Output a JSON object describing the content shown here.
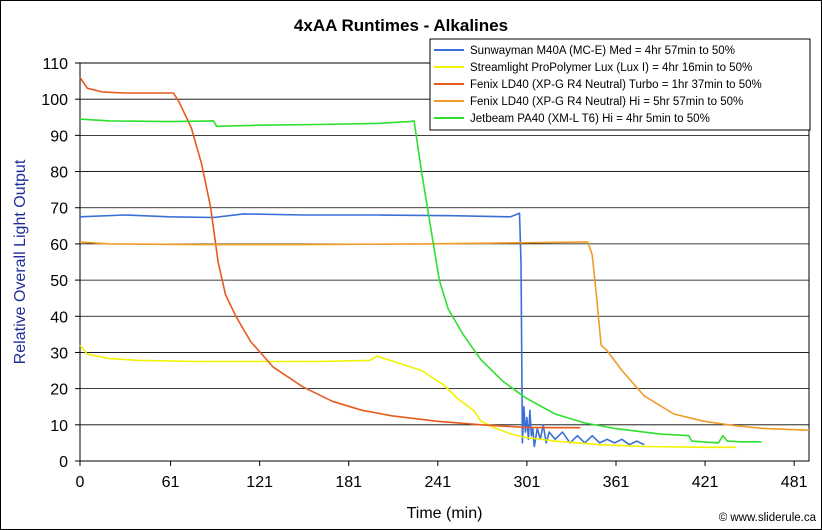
{
  "chart_data": {
    "type": "line",
    "title": "4xAA Runtimes - Alkalines",
    "xlabel": "Time (min)",
    "ylabel": "Relative Overall Light Output",
    "xlim": [
      0,
      491
    ],
    "ylim": [
      0,
      110
    ],
    "xticks": [
      0,
      61,
      121,
      181,
      241,
      301,
      361,
      421,
      481
    ],
    "yticks": [
      0,
      10,
      20,
      30,
      40,
      50,
      60,
      70,
      80,
      90,
      100,
      110
    ],
    "grid": "horizontal",
    "legend_position": "top-right",
    "credit": "© www.sliderule.ca",
    "series": [
      {
        "name": "Sunwayman M40A (MC-E) Med = 4hr 57min to 50%",
        "color": "#3b6fd8",
        "points": [
          [
            0,
            67.5
          ],
          [
            30,
            68
          ],
          [
            60,
            67.5
          ],
          [
            90,
            67.3
          ],
          [
            110,
            68.3
          ],
          [
            150,
            68
          ],
          [
            200,
            68
          ],
          [
            250,
            67.8
          ],
          [
            290,
            67.5
          ],
          [
            296,
            68.5
          ],
          [
            297,
            55
          ],
          [
            298,
            5
          ],
          [
            299,
            15
          ],
          [
            300,
            8
          ],
          [
            301,
            12
          ],
          [
            302,
            6
          ],
          [
            303,
            14
          ],
          [
            304,
            7
          ],
          [
            305,
            9
          ],
          [
            306,
            4
          ],
          [
            308,
            9
          ],
          [
            310,
            6
          ],
          [
            312,
            10
          ],
          [
            314,
            5
          ],
          [
            316,
            8
          ],
          [
            320,
            6
          ],
          [
            325,
            8
          ],
          [
            330,
            5
          ],
          [
            335,
            7
          ],
          [
            340,
            5
          ],
          [
            345,
            7
          ],
          [
            350,
            5
          ],
          [
            355,
            6
          ],
          [
            360,
            5
          ],
          [
            365,
            6
          ],
          [
            370,
            4.5
          ],
          [
            375,
            5.5
          ],
          [
            380,
            4.5
          ]
        ]
      },
      {
        "name": "Streamlight ProPolymer Lux (Lux I) = 4hr 16min to 50%",
        "color": "#f2f200",
        "points": [
          [
            0,
            32
          ],
          [
            5,
            29.5
          ],
          [
            20,
            28.3
          ],
          [
            40,
            27.8
          ],
          [
            80,
            27.5
          ],
          [
            120,
            27.5
          ],
          [
            160,
            27.5
          ],
          [
            195,
            27.8
          ],
          [
            200,
            29
          ],
          [
            215,
            27
          ],
          [
            230,
            25
          ],
          [
            245,
            21
          ],
          [
            255,
            17
          ],
          [
            265,
            14
          ],
          [
            270,
            11
          ],
          [
            280,
            9
          ],
          [
            290,
            7.5
          ],
          [
            300,
            6.5
          ],
          [
            320,
            5.5
          ],
          [
            350,
            4.5
          ],
          [
            380,
            4
          ],
          [
            420,
            3.8
          ],
          [
            442,
            3.8
          ]
        ]
      },
      {
        "name": "Fenix LD40 (XP-G R4 Neutral) Turbo = 1hr 37min to 50%",
        "color": "#e85a1e",
        "points": [
          [
            0,
            106
          ],
          [
            5,
            103
          ],
          [
            15,
            102
          ],
          [
            30,
            101.7
          ],
          [
            63,
            101.7
          ],
          [
            67,
            99
          ],
          [
            75,
            92
          ],
          [
            82,
            82
          ],
          [
            88,
            70
          ],
          [
            93,
            55
          ],
          [
            98,
            46
          ],
          [
            105,
            40
          ],
          [
            115,
            33
          ],
          [
            130,
            26
          ],
          [
            150,
            20.5
          ],
          [
            170,
            16.5
          ],
          [
            190,
            14
          ],
          [
            210,
            12.5
          ],
          [
            240,
            11
          ],
          [
            270,
            10
          ],
          [
            300,
            9.3
          ],
          [
            320,
            9.2
          ],
          [
            337,
            9.2
          ]
        ]
      },
      {
        "name": "Fenix LD40 (XP-G R4 Neutral) Hi = 5hr 57min to 50%",
        "color": "#f09a28",
        "points": [
          [
            0,
            60.5
          ],
          [
            20,
            60
          ],
          [
            80,
            59.8
          ],
          [
            150,
            59.8
          ],
          [
            230,
            60
          ],
          [
            300,
            60.3
          ],
          [
            335,
            60.5
          ],
          [
            342,
            60.5
          ],
          [
            345,
            57
          ],
          [
            348,
            45
          ],
          [
            351,
            32
          ],
          [
            355,
            30.5
          ],
          [
            365,
            25
          ],
          [
            380,
            18
          ],
          [
            400,
            13
          ],
          [
            420,
            11
          ],
          [
            440,
            9.8
          ],
          [
            460,
            9
          ],
          [
            491,
            8.5
          ]
        ]
      },
      {
        "name": "Jetbeam PA40 (XM-L T6) Hi = 4hr 5min to 50%",
        "color": "#2ee02e",
        "points": [
          [
            0,
            94.5
          ],
          [
            20,
            94
          ],
          [
            60,
            93.8
          ],
          [
            90,
            94
          ],
          [
            92,
            92.5
          ],
          [
            120,
            92.8
          ],
          [
            160,
            93
          ],
          [
            200,
            93.3
          ],
          [
            222,
            93.8
          ],
          [
            225,
            94
          ],
          [
            230,
            80
          ],
          [
            236,
            65
          ],
          [
            242,
            50
          ],
          [
            248,
            42
          ],
          [
            258,
            35
          ],
          [
            270,
            28
          ],
          [
            285,
            22
          ],
          [
            300,
            17.5
          ],
          [
            320,
            13
          ],
          [
            340,
            10.5
          ],
          [
            360,
            9
          ],
          [
            390,
            7.5
          ],
          [
            410,
            7
          ],
          [
            412,
            5.5
          ],
          [
            430,
            5
          ],
          [
            433,
            7
          ],
          [
            436,
            5.5
          ],
          [
            445,
            5.3
          ],
          [
            459,
            5.3
          ]
        ]
      }
    ]
  }
}
